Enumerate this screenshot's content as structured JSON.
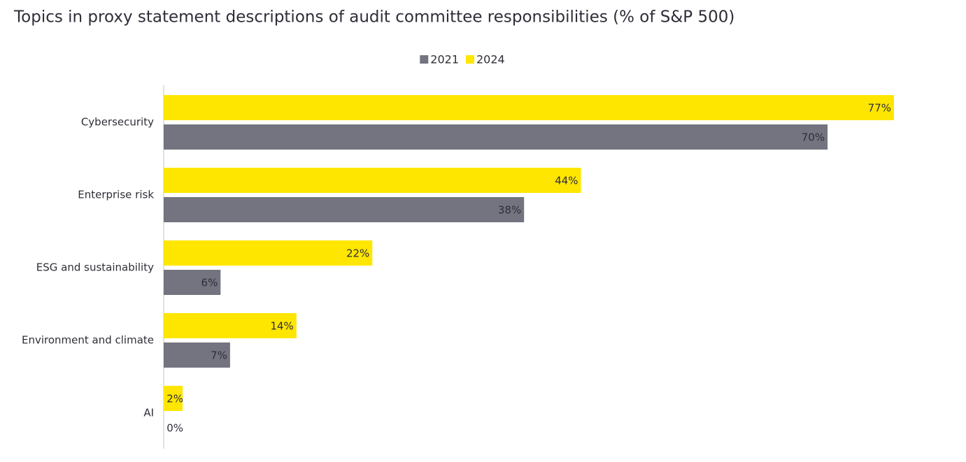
{
  "chart_data": {
    "type": "bar",
    "orientation": "horizontal",
    "title": "Topics in proxy statement descriptions of audit committee responsibilities (% of S&P 500)",
    "categories": [
      "Cybersecurity",
      "Enterprise risk",
      "ESG and sustainability",
      "Environment and climate",
      "AI"
    ],
    "series": [
      {
        "name": "2021",
        "color": "#747480",
        "values": [
          70,
          38,
          6,
          7,
          0
        ],
        "value_labels": [
          "70%",
          "38%",
          "6%",
          "7%",
          "0%"
        ]
      },
      {
        "name": "2024",
        "color": "#ffe600",
        "values": [
          77,
          44,
          22,
          14,
          2
        ],
        "value_labels": [
          "77%",
          "44%",
          "22%",
          "14%",
          "2%"
        ]
      }
    ]
  }
}
